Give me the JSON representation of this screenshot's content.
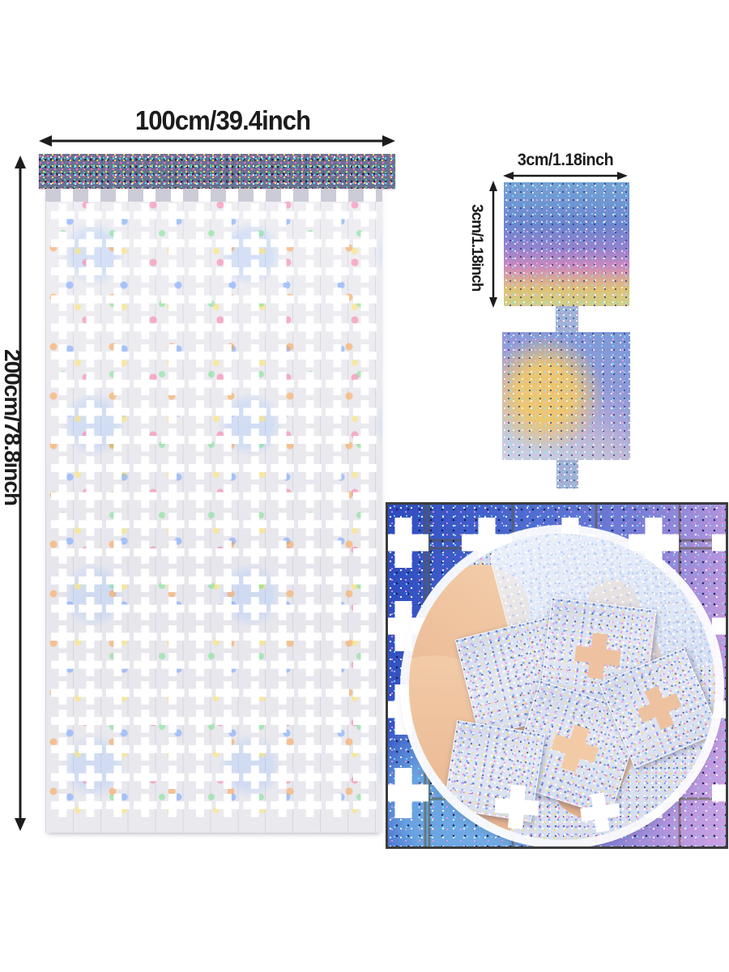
{
  "dimensions": {
    "curtain_width_label": "100cm/39.4inch",
    "curtain_height_label": "200cm/78.8inch",
    "square_width_label": "3cm/1.18inch",
    "square_height_label": "3cm/1.18inch"
  },
  "colors": {
    "background": "#ffffff",
    "annotation": "#1c1c1c",
    "curtain_silver": "#e9e9ee",
    "header_band": "#697094",
    "swatch_blue": "#74a4d6",
    "swatch_gold": "#dfc178",
    "detail_blue": "#2b48be",
    "detail_lilac": "#cda0e1",
    "hand_skin": "#eec2a0",
    "glitter_silver": "#dde3f0",
    "cross_cutout": "#ffffff"
  }
}
